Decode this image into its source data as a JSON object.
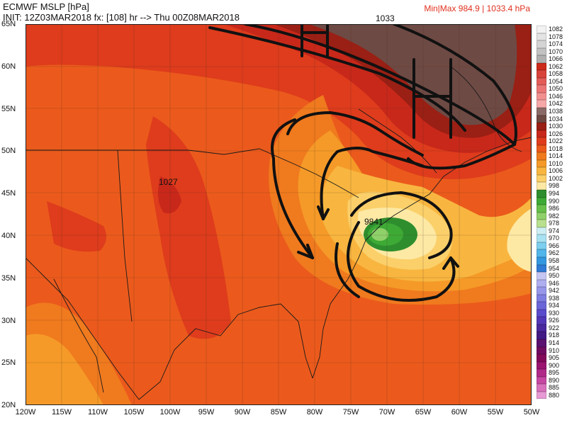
{
  "header": {
    "title": "ECMWF MSLP [hPa]",
    "init_line": "INIT: 12Z03MAR2018 fx: [108] hr --> Thu 00Z08MAR2018",
    "minmax": "Min|Max 984.9 | 1033.4 hPa"
  },
  "map_labels": {
    "high_west": "1027",
    "high_north": "1033",
    "low_center": "9841"
  },
  "lat_labels": [
    "65N",
    "60N",
    "55N",
    "50N",
    "45N",
    "40N",
    "35N",
    "30N",
    "25N",
    "20N"
  ],
  "lon_labels": [
    "120W",
    "115W",
    "110W",
    "105W",
    "100W",
    "95W",
    "90W",
    "85W",
    "80W",
    "75W",
    "70W",
    "65W",
    "60W",
    "55W",
    "50W"
  ],
  "legend": [
    {
      "label": "1082",
      "color": "#f2f2f2"
    },
    {
      "label": "1078",
      "color": "#e4e4e4"
    },
    {
      "label": "1074",
      "color": "#d4d4d4"
    },
    {
      "label": "1070",
      "color": "#c2c2c2"
    },
    {
      "label": "1066",
      "color": "#b0b0b0"
    },
    {
      "label": "1062",
      "color": "#cc2a1a"
    },
    {
      "label": "1058",
      "color": "#d8433a"
    },
    {
      "label": "1054",
      "color": "#e35c58"
    },
    {
      "label": "1050",
      "color": "#ec7676"
    },
    {
      "label": "1046",
      "color": "#f29090"
    },
    {
      "label": "1042",
      "color": "#f6a8a8"
    },
    {
      "label": "1038",
      "color": "#8a6a66"
    },
    {
      "label": "1034",
      "color": "#6e4a44"
    },
    {
      "label": "1030",
      "color": "#9a1f14"
    },
    {
      "label": "1026",
      "color": "#c8281a"
    },
    {
      "label": "1022",
      "color": "#de3c1c"
    },
    {
      "label": "1018",
      "color": "#eb5a1c"
    },
    {
      "label": "1014",
      "color": "#f07a1e"
    },
    {
      "label": "1010",
      "color": "#f59a28"
    },
    {
      "label": "1006",
      "color": "#f8b640"
    },
    {
      "label": "1002",
      "color": "#fbd06a"
    },
    {
      "label": "998",
      "color": "#fde9a4"
    },
    {
      "label": "994",
      "color": "#2e8e2e"
    },
    {
      "label": "990",
      "color": "#3eaa36"
    },
    {
      "label": "986",
      "color": "#66c04a"
    },
    {
      "label": "982",
      "color": "#8fd06a"
    },
    {
      "label": "978",
      "color": "#b8e08e"
    },
    {
      "label": "974",
      "color": "#cdeef2"
    },
    {
      "label": "970",
      "color": "#a8e2f2"
    },
    {
      "label": "966",
      "color": "#7ccfee"
    },
    {
      "label": "962",
      "color": "#52b6ea"
    },
    {
      "label": "958",
      "color": "#3498e0"
    },
    {
      "label": "954",
      "color": "#2f7bd6"
    },
    {
      "label": "950",
      "color": "#c6c6f4"
    },
    {
      "label": "946",
      "color": "#aeaef0"
    },
    {
      "label": "942",
      "color": "#9696ea"
    },
    {
      "label": "938",
      "color": "#7e7ee2"
    },
    {
      "label": "934",
      "color": "#6a66d8"
    },
    {
      "label": "930",
      "color": "#5a4ccc"
    },
    {
      "label": "926",
      "color": "#5238b8"
    },
    {
      "label": "922",
      "color": "#4a289e"
    },
    {
      "label": "918",
      "color": "#421a84"
    },
    {
      "label": "914",
      "color": "#5a1070"
    },
    {
      "label": "910",
      "color": "#700a60"
    },
    {
      "label": "905",
      "color": "#82085a"
    },
    {
      "label": "900",
      "color": "#9a1470"
    },
    {
      "label": "895",
      "color": "#b02a88"
    },
    {
      "label": "890",
      "color": "#c648a2"
    },
    {
      "label": "885",
      "color": "#d870bc"
    },
    {
      "label": "880",
      "color": "#e79ad4"
    }
  ]
}
